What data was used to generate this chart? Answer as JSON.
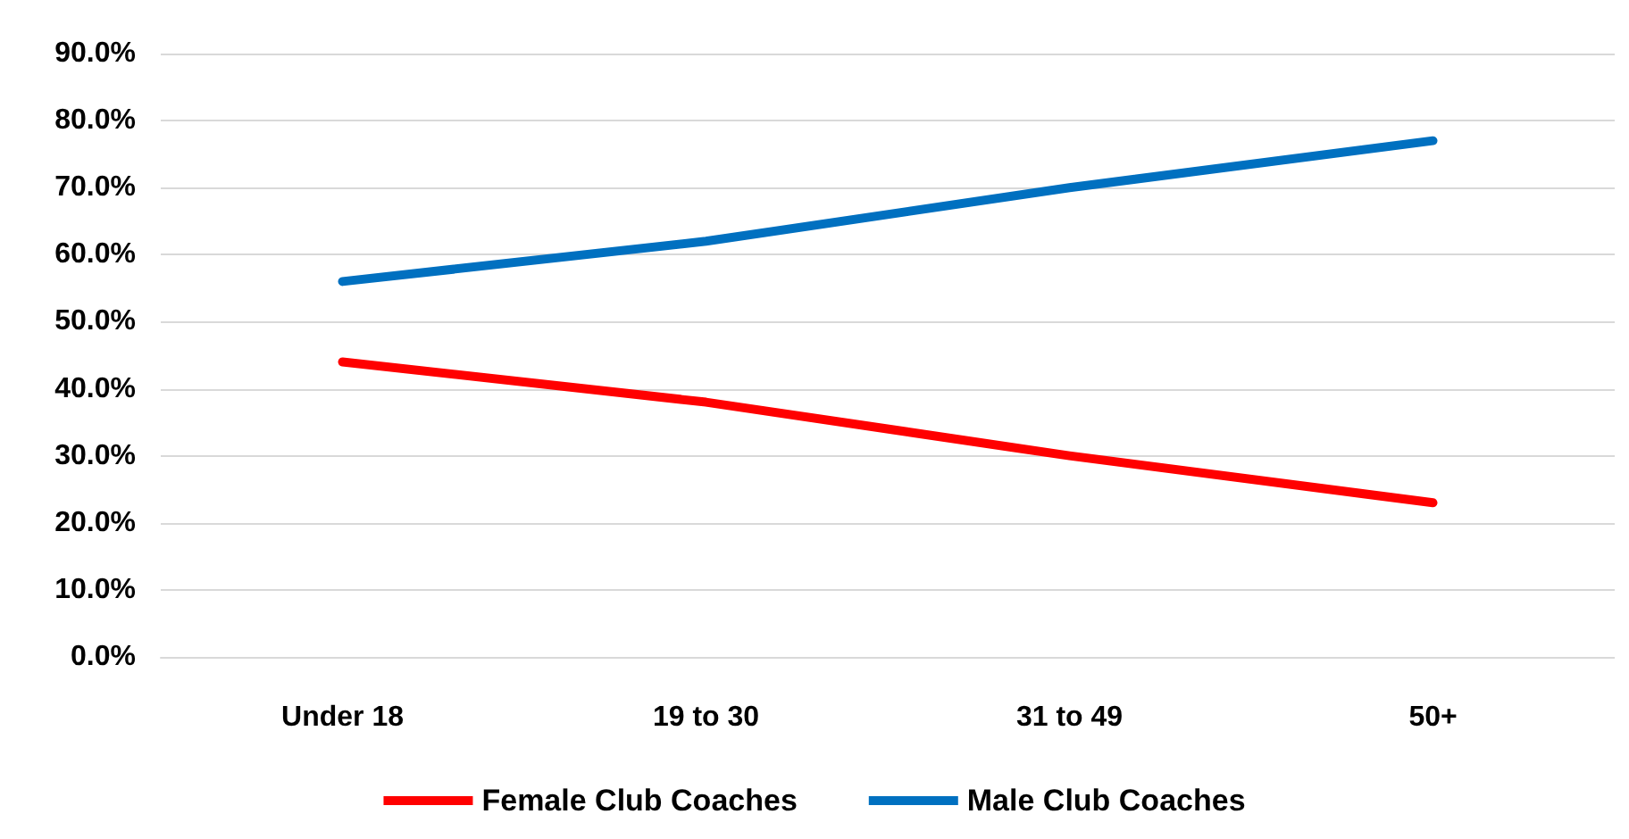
{
  "chart_data": {
    "type": "line",
    "categories": [
      "Under 18",
      "19 to 30",
      "31 to 49",
      "50+"
    ],
    "series": [
      {
        "name": "Female Club Coaches",
        "color": "#ff0000",
        "values": [
          44,
          38,
          30,
          23
        ]
      },
      {
        "name": "Male Club Coaches",
        "color": "#0070c0",
        "values": [
          56,
          62,
          70,
          77
        ]
      }
    ],
    "ylim": [
      0,
      90
    ],
    "yticks": [
      {
        "value": 0,
        "label": "0.0%"
      },
      {
        "value": 10,
        "label": "10.0%"
      },
      {
        "value": 20,
        "label": "20.0%"
      },
      {
        "value": 30,
        "label": "30.0%"
      },
      {
        "value": 40,
        "label": "40.0%"
      },
      {
        "value": 50,
        "label": "50.0%"
      },
      {
        "value": 60,
        "label": "60.0%"
      },
      {
        "value": 70,
        "label": "70.0%"
      },
      {
        "value": 80,
        "label": "80.0%"
      },
      {
        "value": 90,
        "label": "90.0%"
      }
    ],
    "grid": "y",
    "legend": "bottom",
    "marker": "none",
    "line_style": "solid"
  }
}
